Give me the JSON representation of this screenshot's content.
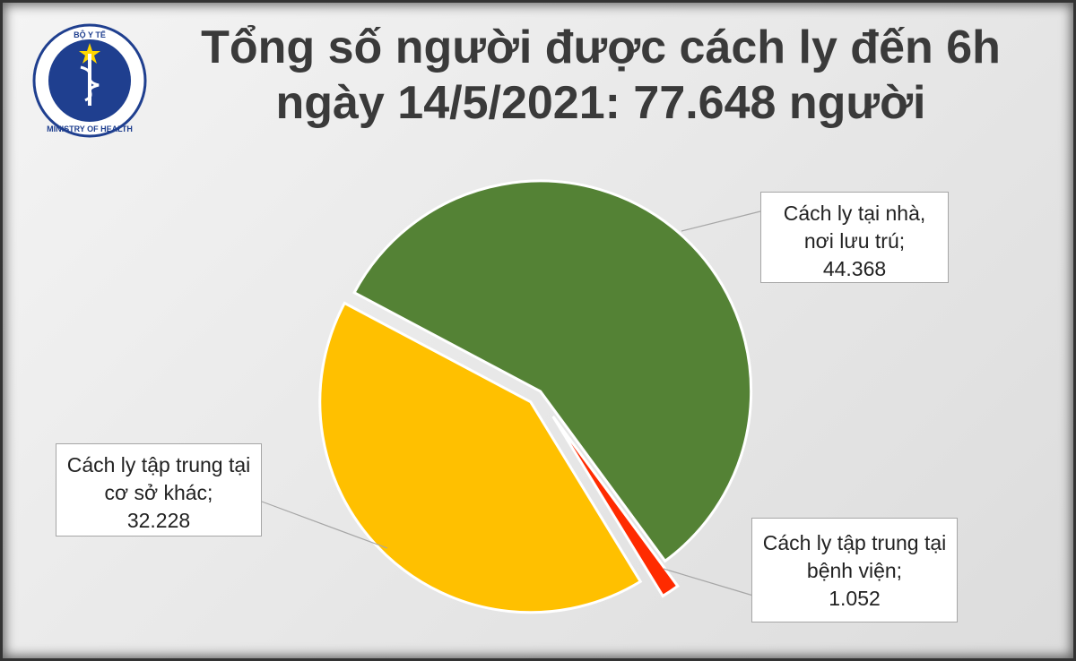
{
  "logo": {
    "top_text": "BỘ Y TẾ",
    "bottom_text": "MINISTRY OF HEALTH"
  },
  "chart_data": {
    "type": "pie",
    "title": "Tổng số người được cách ly đến 6h ngày 14/5/2021: 77.648 người",
    "categories": [
      "Cách ly tại nhà, nơi lưu trú;",
      "Cách ly tập trung tại bệnh viện;",
      "Cách ly tập trung tại cơ sở khác;"
    ],
    "values": [
      44368,
      1052,
      32228
    ],
    "value_labels": [
      "44.368",
      "1.052",
      "32.228"
    ],
    "colors": [
      "#548235",
      "#ff2b00",
      "#ffc000"
    ]
  }
}
